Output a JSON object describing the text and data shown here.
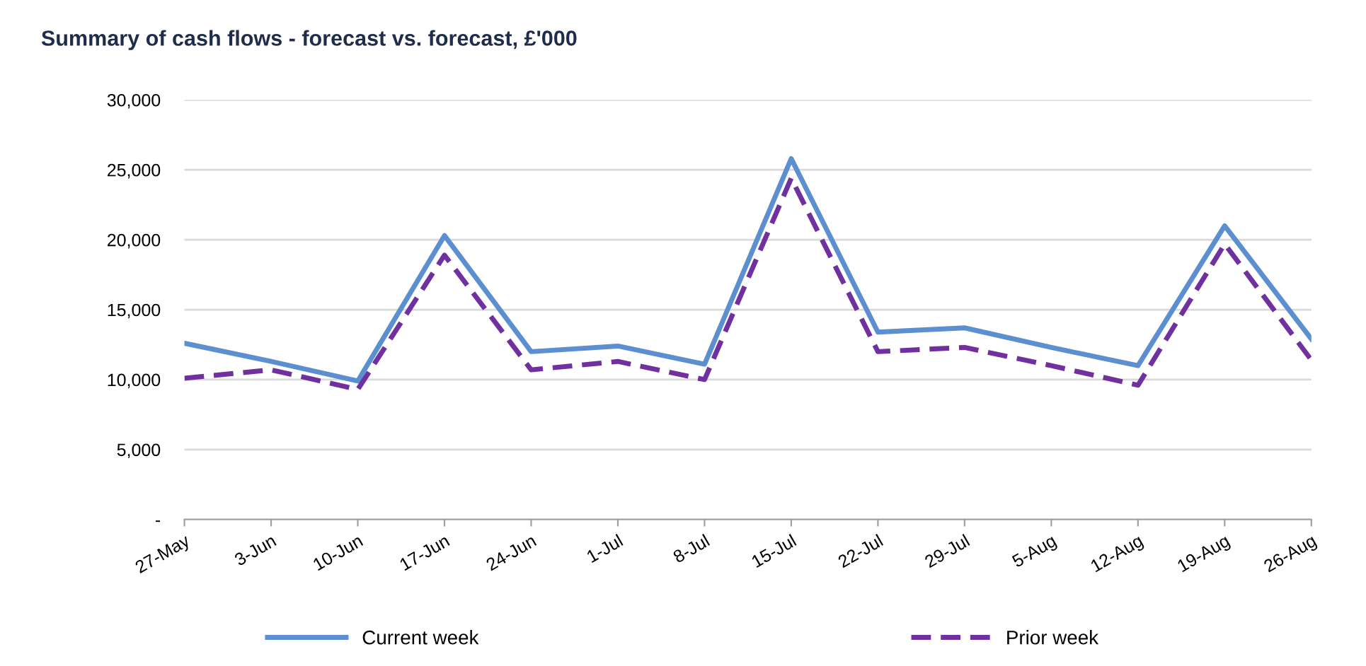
{
  "chart_data": {
    "type": "line",
    "title": "Summary of cash flows - forecast vs. forecast, £'000",
    "categories": [
      "27-May",
      "3-Jun",
      "10-Jun",
      "17-Jun",
      "24-Jun",
      "1-Jul",
      "8-Jul",
      "15-Jul",
      "22-Jul",
      "29-Jul",
      "5-Aug",
      "12-Aug",
      "19-Aug",
      "26-Aug"
    ],
    "series": [
      {
        "name": "Current week",
        "color": "#5b8fd0",
        "line_style": "solid",
        "values": [
          12600,
          11300,
          9900,
          20300,
          12000,
          12400,
          11100,
          25800,
          13400,
          13700,
          12300,
          11000,
          21000,
          12900
        ]
      },
      {
        "name": "Prior week",
        "color": "#7030a0",
        "line_style": "dashed",
        "values": [
          10100,
          10700,
          9300,
          18900,
          10700,
          11300,
          10000,
          24400,
          12000,
          12300,
          11000,
          9600,
          19700,
          11400
        ]
      }
    ],
    "ylim": [
      0,
      30000
    ],
    "yticks": [
      {
        "value": 0,
        "label": "-"
      },
      {
        "value": 5000,
        "label": "5,000"
      },
      {
        "value": 10000,
        "label": "10,000"
      },
      {
        "value": 15000,
        "label": "15,000"
      },
      {
        "value": 20000,
        "label": "20,000"
      },
      {
        "value": 25000,
        "label": "25,000"
      },
      {
        "value": 30000,
        "label": "30,000"
      }
    ],
    "grid": "y",
    "legend": "bottom",
    "marker": "none"
  }
}
